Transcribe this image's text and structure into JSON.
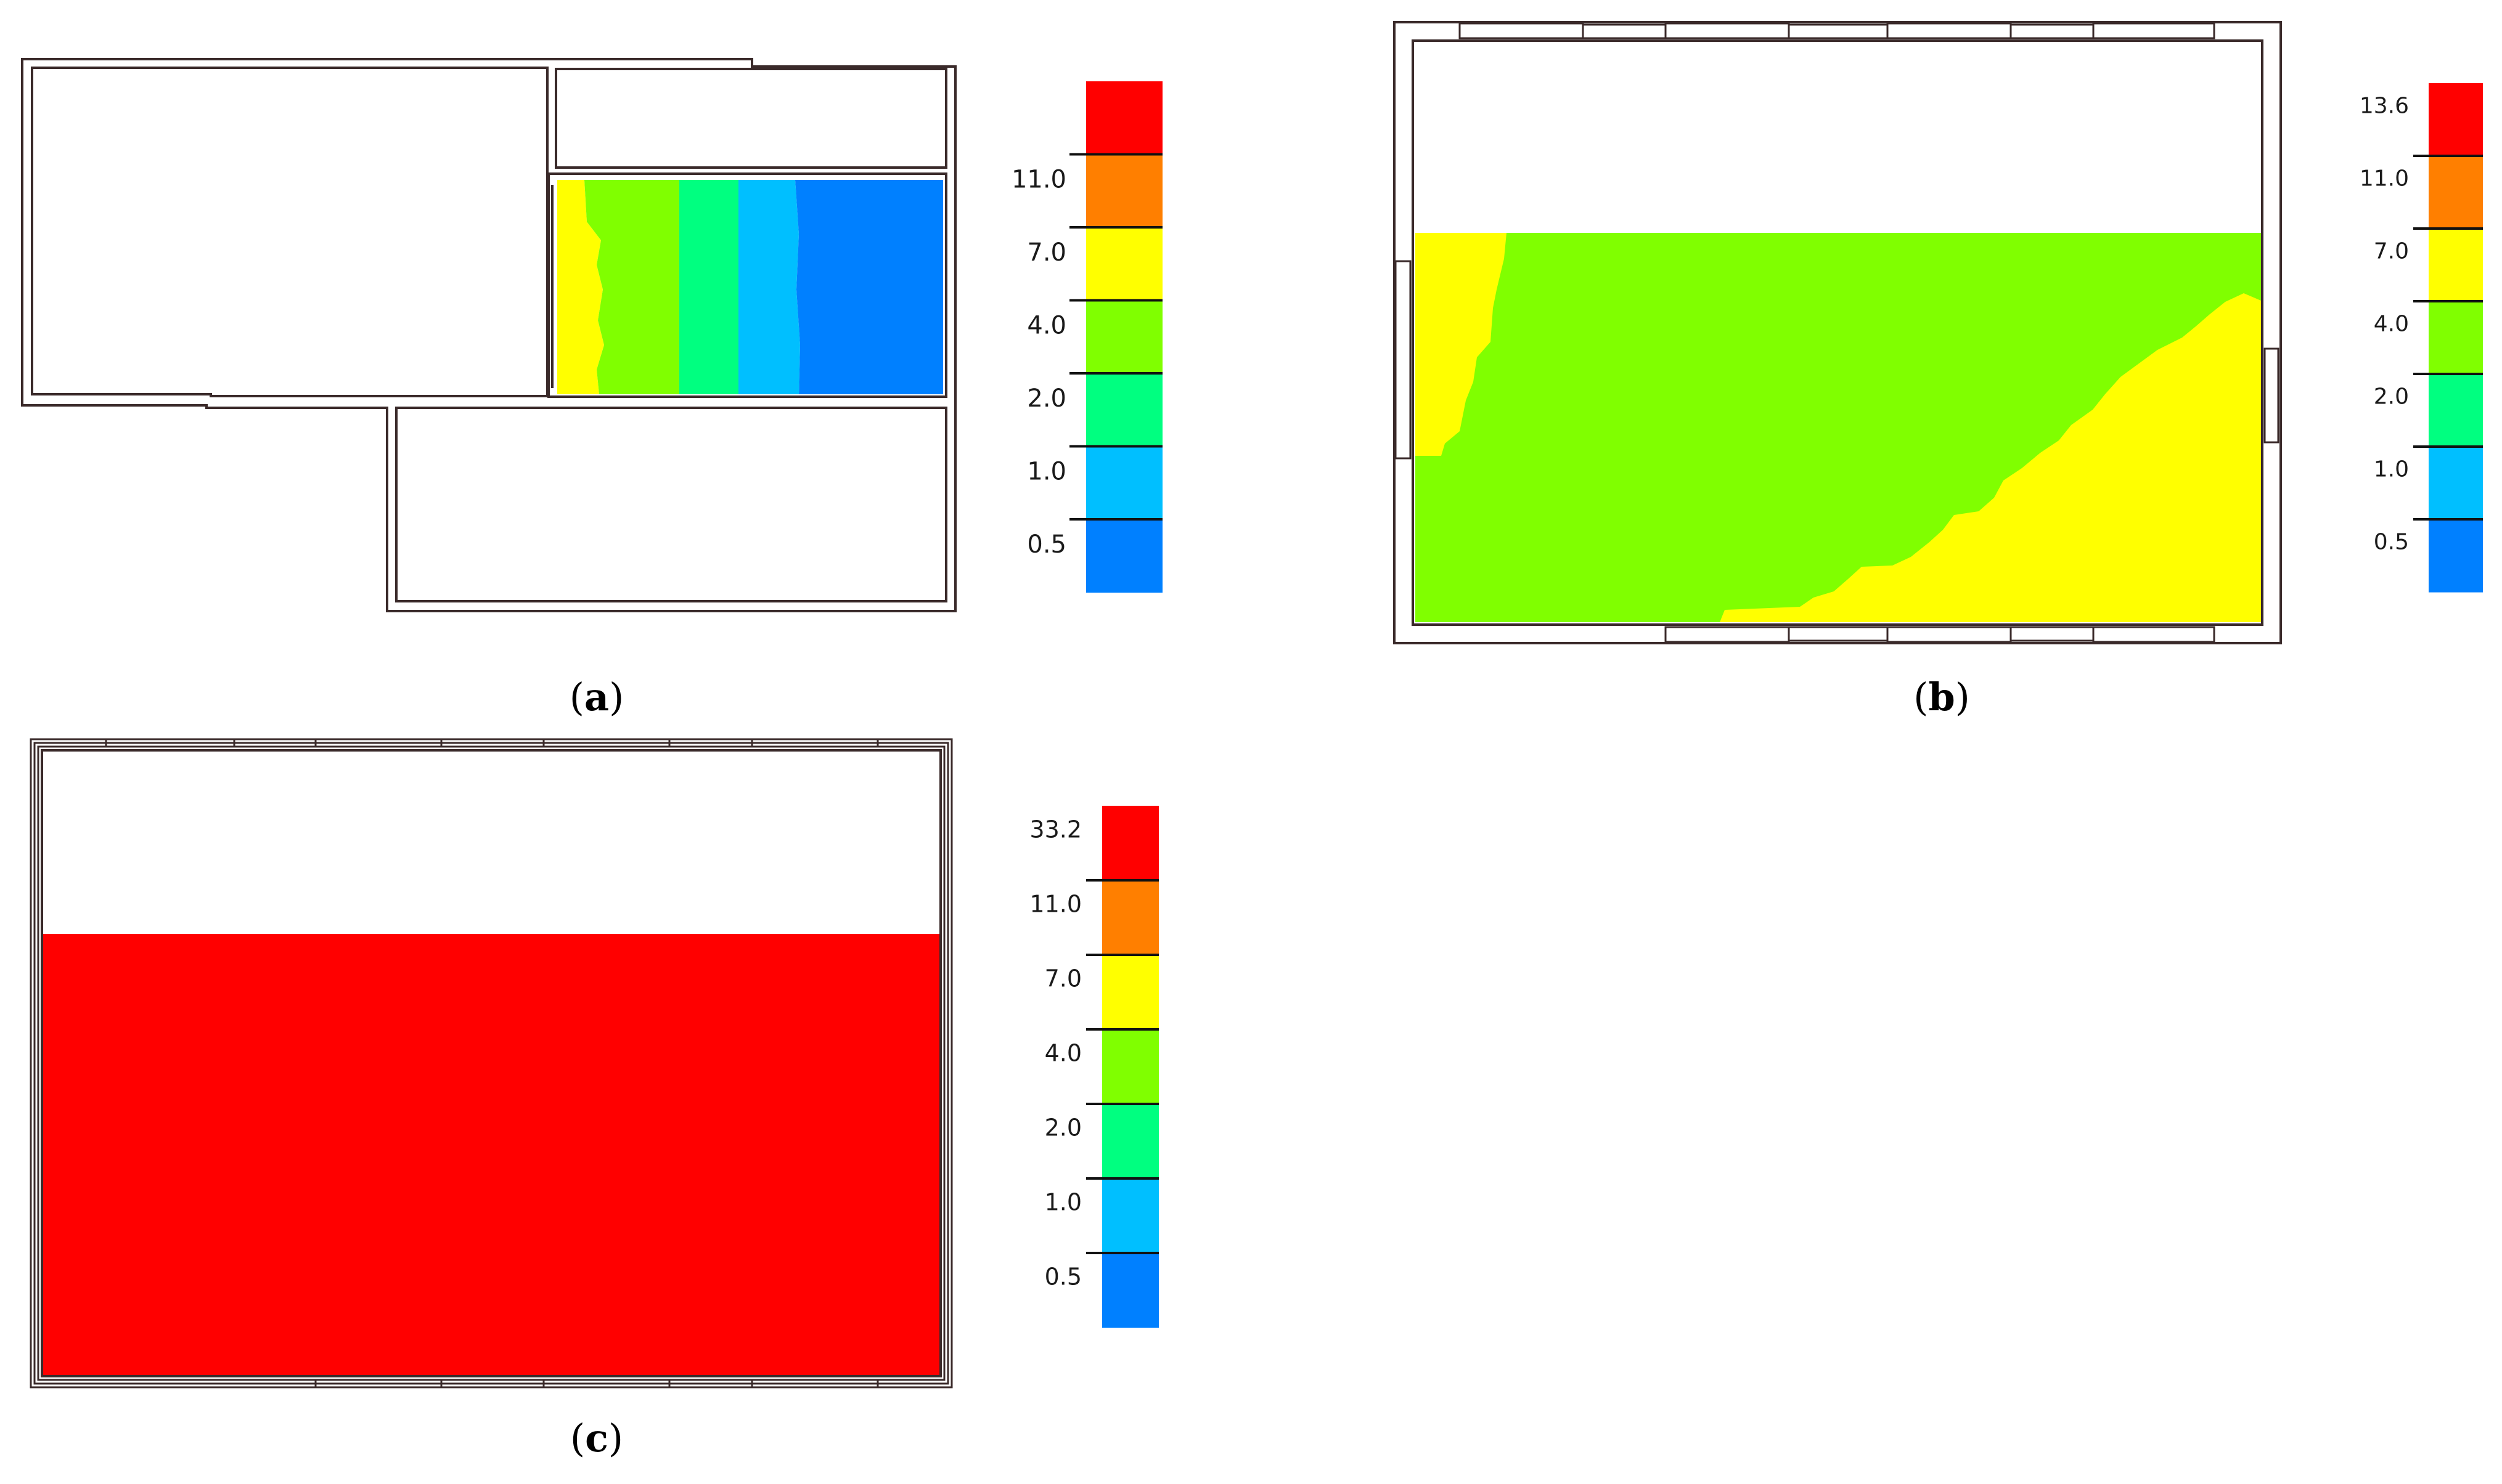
{
  "palette": {
    "red": "#ff0000",
    "orange": "#ff7f00",
    "yellow": "#ffff00",
    "green": "#80ff00",
    "teal": "#00ff80",
    "skyblue": "#00bfff",
    "blue": "#0080ff",
    "wall": "#3a2a2a"
  },
  "panels": [
    {
      "id": "a",
      "caption": "a",
      "legend": {
        "labels": [
          "",
          "11.0",
          "7.0",
          "4.0",
          "2.0",
          "1.0",
          "0.5"
        ]
      }
    },
    {
      "id": "b",
      "caption": "b",
      "legend": {
        "labels": [
          "13.6",
          "11.0",
          "7.0",
          "4.0",
          "2.0",
          "1.0",
          "0.5"
        ]
      }
    },
    {
      "id": "c",
      "caption": "c",
      "legend": {
        "labels": [
          "33.2",
          "11.0",
          "7.0",
          "4.0",
          "2.0",
          "1.0",
          "0.5"
        ]
      }
    }
  ]
}
